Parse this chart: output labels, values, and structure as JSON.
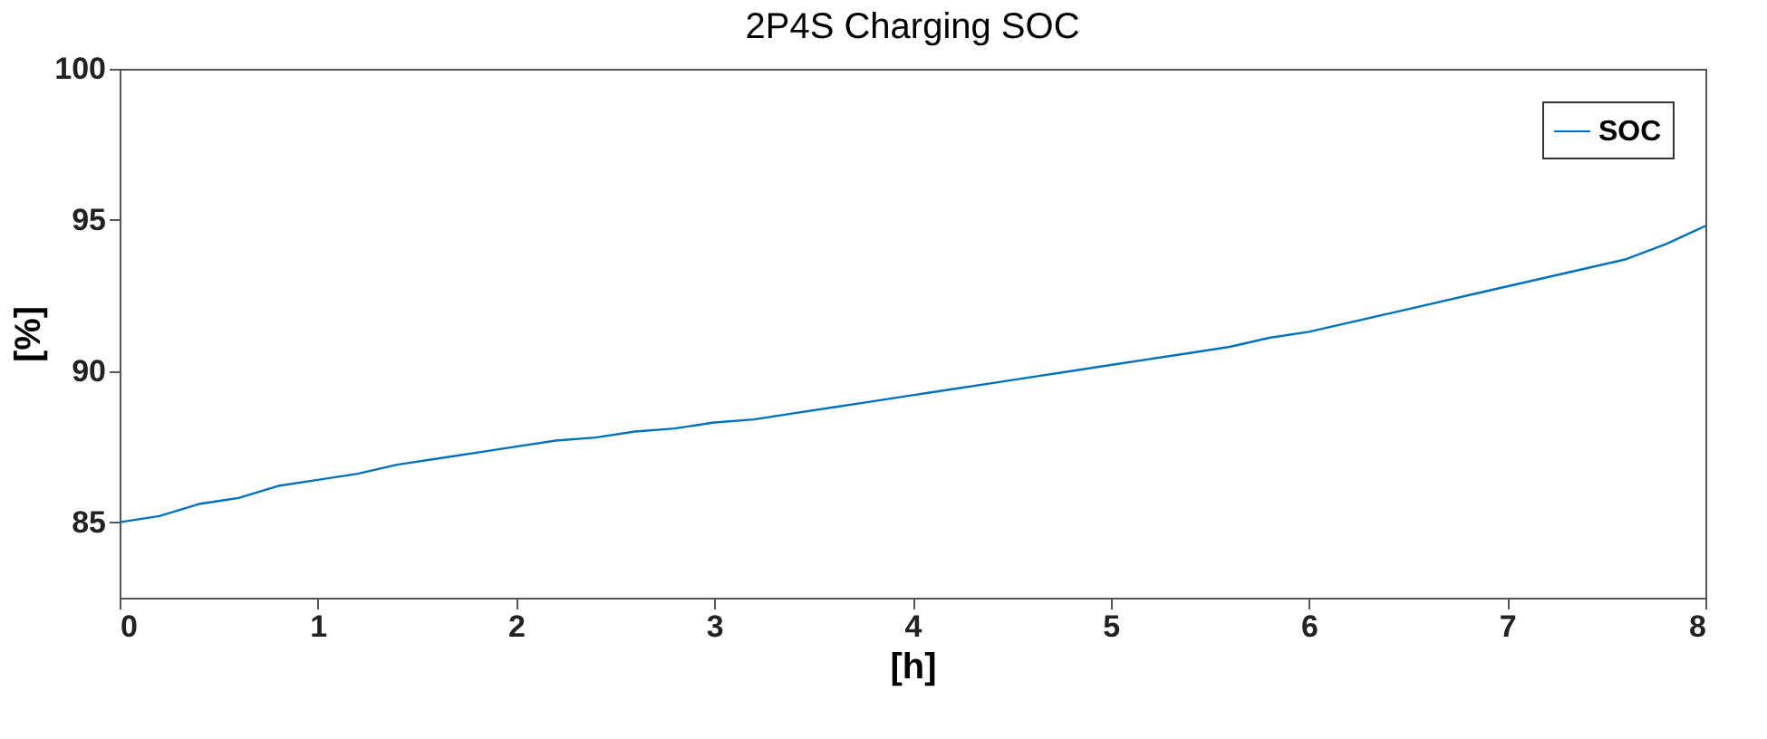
{
  "chart_data": {
    "type": "line",
    "title": "2P4S Charging SOC",
    "xlabel": "[h]",
    "ylabel": "[%]",
    "x": [
      0,
      0.2,
      0.4,
      0.6,
      0.8,
      1.0,
      1.2,
      1.4,
      1.6,
      1.8,
      2.0,
      2.2,
      2.4,
      2.6,
      2.8,
      3.0,
      3.2,
      3.4,
      3.6,
      3.8,
      4.0,
      4.2,
      4.4,
      4.6,
      4.8,
      5.0,
      5.2,
      5.4,
      5.6,
      5.8,
      6.0,
      6.2,
      6.4,
      6.6,
      6.8,
      7.0,
      7.2,
      7.4,
      7.6,
      7.8,
      8.0
    ],
    "series": [
      {
        "name": "SOC",
        "color": "#0072bd",
        "values": [
          85.0,
          85.2,
          85.6,
          85.8,
          86.2,
          86.4,
          86.6,
          86.9,
          87.1,
          87.3,
          87.5,
          87.7,
          87.8,
          88.0,
          88.1,
          88.3,
          88.4,
          88.6,
          88.8,
          89.0,
          89.2,
          89.4,
          89.6,
          89.8,
          90.0,
          90.2,
          90.4,
          90.6,
          90.8,
          91.1,
          91.3,
          91.6,
          91.9,
          92.2,
          92.5,
          92.8,
          93.1,
          93.4,
          93.7,
          94.2,
          94.8
        ]
      }
    ],
    "xlim": [
      0,
      8
    ],
    "xticks": [
      0,
      1,
      2,
      3,
      4,
      5,
      6,
      7,
      8
    ],
    "ylim": [
      82.5,
      100
    ],
    "yticks": [
      85,
      90,
      95,
      100
    ],
    "grid": false,
    "legend": "top right",
    "marker": "none",
    "line_style": "solid"
  }
}
